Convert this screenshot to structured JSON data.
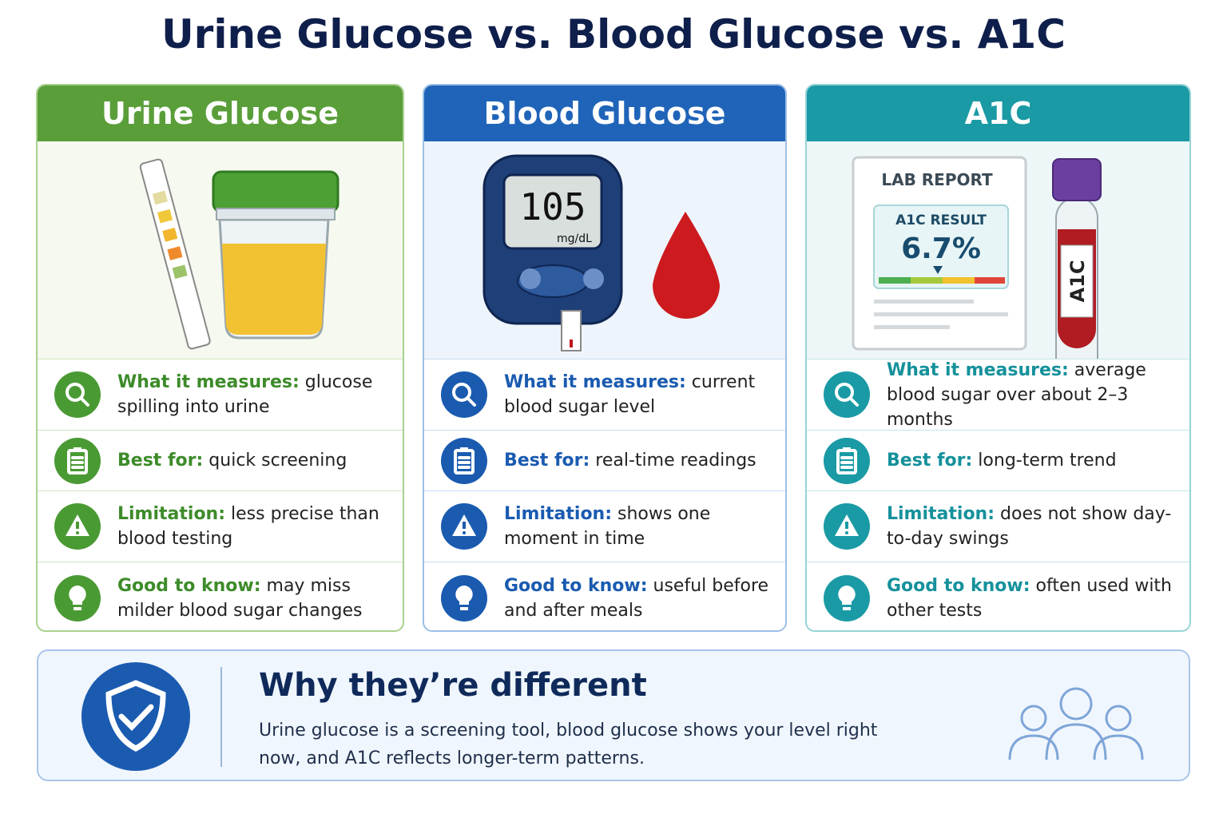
{
  "title": "Urine Glucose vs. Blood Glucose vs. A1C",
  "columns": [
    {
      "heading": "Urine Glucose",
      "rows": [
        {
          "label": "What it measures:",
          "text": "glucose spilling into urine"
        },
        {
          "label": "Best for:",
          "text": "quick screening"
        },
        {
          "label": "Limitation:",
          "text": "less precise than blood testing"
        },
        {
          "label": "Good to know:",
          "text": "may miss milder blood sugar changes"
        }
      ]
    },
    {
      "heading": "Blood Glucose",
      "illustration": {
        "reading": "105",
        "unit": "mg/dL"
      },
      "rows": [
        {
          "label": "What it measures:",
          "text": "current blood sugar level"
        },
        {
          "label": "Best for:",
          "text": "real-time readings"
        },
        {
          "label": "Limitation:",
          "text": "shows one moment in time"
        },
        {
          "label": "Good to know:",
          "text": "useful before and after meals"
        }
      ]
    },
    {
      "heading": "A1C",
      "illustration": {
        "report_title": "LAB REPORT",
        "result_label": "A1C RESULT",
        "result": "6.7%",
        "tube_label": "A1C"
      },
      "rows": [
        {
          "label": "What it measures:",
          "text": "average blood sugar over about 2–3 months"
        },
        {
          "label": "Best for:",
          "text": "long-term trend"
        },
        {
          "label": "Limitation:",
          "text": "does not show day-to-day swings"
        },
        {
          "label": "Good to know:",
          "text": "often used with other tests"
        }
      ]
    }
  ],
  "footer": {
    "title": "Why they’re different",
    "text": "Urine glucose is a screening tool, blood glucose shows your level right now, and A1C reflects longer-term patterns."
  }
}
